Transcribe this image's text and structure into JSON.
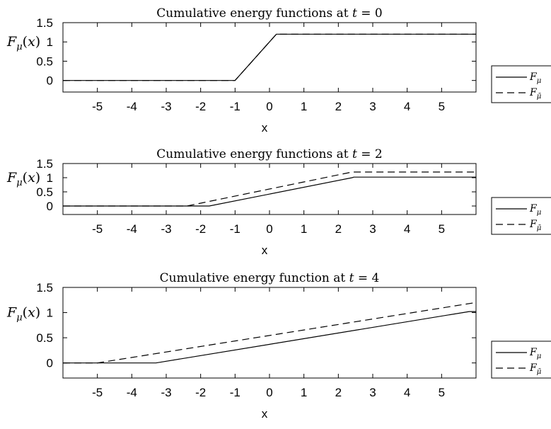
{
  "chart_data": [
    {
      "type": "line",
      "title": "Cumulative energy functions at t = 0",
      "xlabel": "x",
      "ylabel": "Fμ(x)",
      "xlim": [
        -6,
        6
      ],
      "ylim": [
        -0.3,
        1.5
      ],
      "xticks": [
        "-5",
        "-4",
        "-3",
        "-2",
        "-1",
        "0",
        "1",
        "2",
        "3",
        "4",
        "5"
      ],
      "yticks": [
        "0",
        "0.5",
        "1",
        "1.5"
      ],
      "grid": false,
      "legend_placement": "outside-right",
      "series": [
        {
          "name": "Fμ",
          "style": "solid",
          "x": [
            -6,
            -1,
            0.2,
            6
          ],
          "y": [
            0,
            0,
            1.2,
            1.2
          ]
        },
        {
          "name": "Fμ̄",
          "style": "dashed",
          "x": [
            -6,
            -1,
            0.2,
            6
          ],
          "y": [
            0,
            0,
            1.2,
            1.2
          ]
        }
      ]
    },
    {
      "type": "line",
      "title": "Cumulative energy functions at t = 2",
      "xlabel": "x",
      "ylabel": "Fμ(x)",
      "xlim": [
        -6,
        6
      ],
      "ylim": [
        -0.3,
        1.5
      ],
      "xticks": [
        "-5",
        "-4",
        "-3",
        "-2",
        "-1",
        "0",
        "1",
        "2",
        "3",
        "4",
        "5"
      ],
      "yticks": [
        "0",
        "0.5",
        "1",
        "1.5"
      ],
      "grid": false,
      "legend_placement": "outside-right",
      "series": [
        {
          "name": "Fμ",
          "style": "solid",
          "x": [
            -6,
            -1.75,
            2.4,
            2.45,
            6
          ],
          "y": [
            0,
            0,
            1.0,
            1.02,
            1.02
          ]
        },
        {
          "name": "Fμ̄",
          "style": "dashed",
          "x": [
            -6,
            -2.4,
            2.4,
            6
          ],
          "y": [
            0,
            0,
            1.2,
            1.2
          ]
        }
      ]
    },
    {
      "type": "line",
      "title": "Cumulative energy function at t = 4",
      "xlabel": "x",
      "ylabel": "Fμ(x)",
      "xlim": [
        -6,
        6
      ],
      "ylim": [
        -0.3,
        1.5
      ],
      "xticks": [
        "-5",
        "-4",
        "-3",
        "-2",
        "-1",
        "0",
        "1",
        "2",
        "3",
        "4",
        "5"
      ],
      "yticks": [
        "0",
        "0.5",
        "1",
        "1.5"
      ],
      "grid": false,
      "legend_placement": "outside-right",
      "series": [
        {
          "name": "Fμ",
          "style": "solid",
          "x": [
            -6,
            -3.3,
            5.8,
            5.85,
            6
          ],
          "y": [
            0,
            0,
            1.02,
            1.02,
            1.02
          ]
        },
        {
          "name": "Fμ̄",
          "style": "dashed",
          "x": [
            -6,
            -5,
            6
          ],
          "y": [
            0,
            0,
            1.2
          ]
        }
      ]
    }
  ]
}
